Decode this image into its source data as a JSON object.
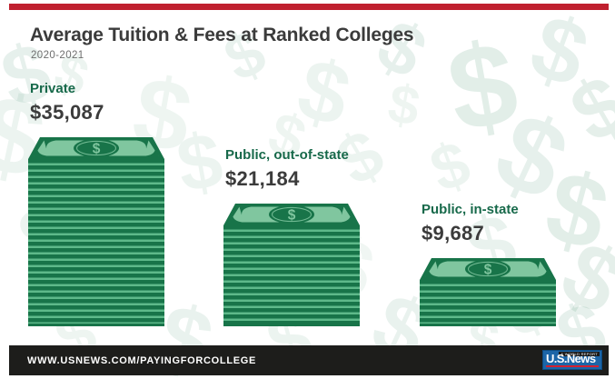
{
  "header": {
    "title": "Average Tuition & Fees at Ranked Colleges",
    "subtitle": "2020-2021"
  },
  "chart_data": {
    "type": "bar",
    "style": "pictograph-money-stacks",
    "title": "Average Tuition & Fees at Ranked Colleges",
    "subtitle": "2020-2021",
    "categories": [
      "Private",
      "Public, out-of-state",
      "Public, in-state"
    ],
    "values": [
      35087,
      21184,
      9687
    ],
    "value_labels": [
      "$35,087",
      "$21,184",
      "$9,687"
    ],
    "unit": "USD",
    "orientation": "vertical",
    "legend": "none",
    "grid": false
  },
  "groups": [
    {
      "label": "Private",
      "value": "$35,087"
    },
    {
      "label": "Public, out-of-state",
      "value": "$21,184"
    },
    {
      "label": "Public, in-state",
      "value": "$9,687"
    }
  ],
  "icons": {
    "dollar_glyph": "$"
  },
  "footer": {
    "url": "WWW.USNEWS.COM/PAYINGFORCOLLEGE",
    "logo_main": "U.S.News",
    "logo_tagline": "& WORLD REPORT"
  },
  "colors": {
    "accent_red": "#c0202f",
    "bill_dark_green": "#187449",
    "bill_light_green": "#80c69f",
    "stripe_light_green": "#5eb98a",
    "label_green": "#17694a",
    "text_dark": "#3b3b3b",
    "subtitle_gray": "#6e6e6e",
    "footer_black": "#1d1d1b",
    "logo_blue": "#1c65a7",
    "logo_red": "#d22030",
    "pattern_green": "#1b7a4e"
  }
}
